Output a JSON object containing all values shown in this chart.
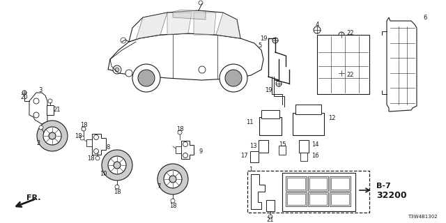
{
  "bg_color": "#ffffff",
  "line_color": "#1a1a1a",
  "part_number_label": "T3W4B1302",
  "b7_label": "B-7",
  "b7_num": "32200",
  "fr_label": "FR.",
  "figsize": [
    6.4,
    3.2
  ],
  "dpi": 100
}
